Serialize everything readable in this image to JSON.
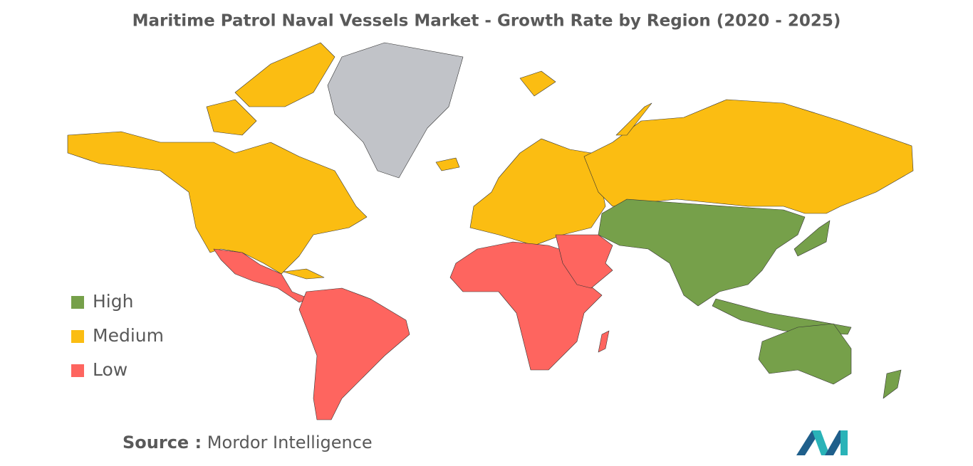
{
  "title": "Maritime Patrol Naval Vessels Market - Growth Rate by Region (2020 - 2025)",
  "legend": [
    {
      "label": "High",
      "color": "#76a04a"
    },
    {
      "label": "Medium",
      "color": "#fbbd12"
    },
    {
      "label": "Low",
      "color": "#fe655f"
    }
  ],
  "no_data_color": "#c1c3c8",
  "source": {
    "label": "Source :",
    "text": "Mordor Intelligence"
  }
}
